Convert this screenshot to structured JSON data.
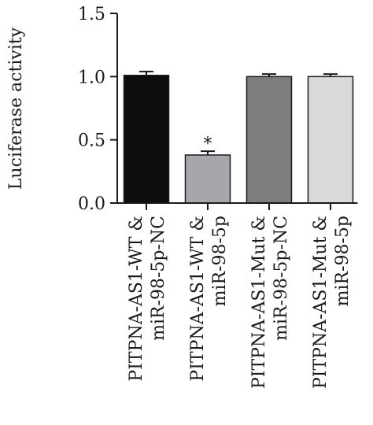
{
  "chart_data": {
    "type": "bar",
    "ylabel": "Luciferase activity",
    "xlabel": "",
    "title": "",
    "ylim": [
      0,
      1.5
    ],
    "yticks": [
      "0.0",
      "0.5",
      "1.0",
      "1.5"
    ],
    "categories": [
      [
        "PITPNA-AS1-WT &",
        "miR-98-5p-NC"
      ],
      [
        "PITPNA-AS1-WT &",
        "miR-98-5p"
      ],
      [
        "PITPNA-AS1-Mut &",
        "miR-98-5p-NC"
      ],
      [
        "PITPNA-AS1-Mut &",
        "miR-98-5p"
      ]
    ],
    "values": [
      1.01,
      0.38,
      1.0,
      1.0
    ],
    "errors": [
      0.03,
      0.03,
      0.02,
      0.02
    ],
    "bar_colors": [
      "#0d0d0d",
      "#a6a7ab",
      "#7d7d7d",
      "#d9d9d9"
    ],
    "annotations": [
      "",
      "*",
      "",
      ""
    ]
  }
}
